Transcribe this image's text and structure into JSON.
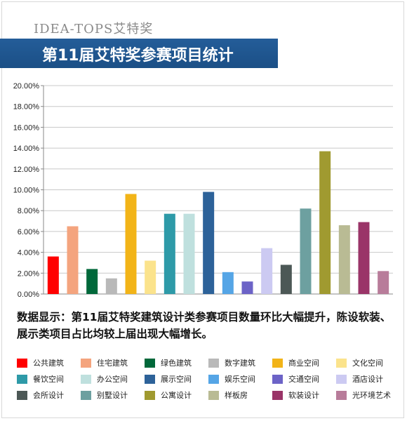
{
  "header": {
    "brand": "IDEA-TOPS艾特奖",
    "title": "第11届艾特奖参赛项目统计"
  },
  "note": {
    "text": "数据显示：第11届艾特奖建筑设计类参赛项目数量环比大幅提升，陈设软装、展示类项目占比均较上届出现大幅增长。"
  },
  "chart_data": {
    "type": "bar",
    "title": "",
    "xlabel": "",
    "ylabel": "",
    "ylim": [
      0,
      20
    ],
    "y_tick_format": "percent_2dp",
    "y_ticks": [
      "0.00%",
      "2.00%",
      "4.00%",
      "6.00%",
      "8.00%",
      "10.00%",
      "12.00%",
      "14.00%",
      "16.00%",
      "18.00%",
      "20.00%"
    ],
    "grid": true,
    "legend": "bottom",
    "categories": [
      "公共建筑",
      "住宅建筑",
      "绿色建筑",
      "数字建筑",
      "商业空间",
      "文化空间",
      "餐饮空间",
      "办公空间",
      "展示空间",
      "娱乐空间",
      "交通空间",
      "酒店设计",
      "会所设计",
      "别墅设计",
      "公寓设计",
      "样板房",
      "软装设计",
      "光环境艺术"
    ],
    "values": [
      3.6,
      6.5,
      2.4,
      1.5,
      9.6,
      3.2,
      7.7,
      7.7,
      9.8,
      2.1,
      1.2,
      4.4,
      2.8,
      8.2,
      13.7,
      6.6,
      6.9,
      2.2
    ],
    "colors": [
      "#ff0000",
      "#f4a47e",
      "#00683a",
      "#b9b9b9",
      "#f2b418",
      "#fbe38c",
      "#2e9aa8",
      "#bfe0de",
      "#2d6299",
      "#55a5e6",
      "#6c63c7",
      "#cccaf2",
      "#4c5856",
      "#6da0a0",
      "#a09a30",
      "#b9bb94",
      "#9a3468",
      "#b87c9a"
    ]
  }
}
